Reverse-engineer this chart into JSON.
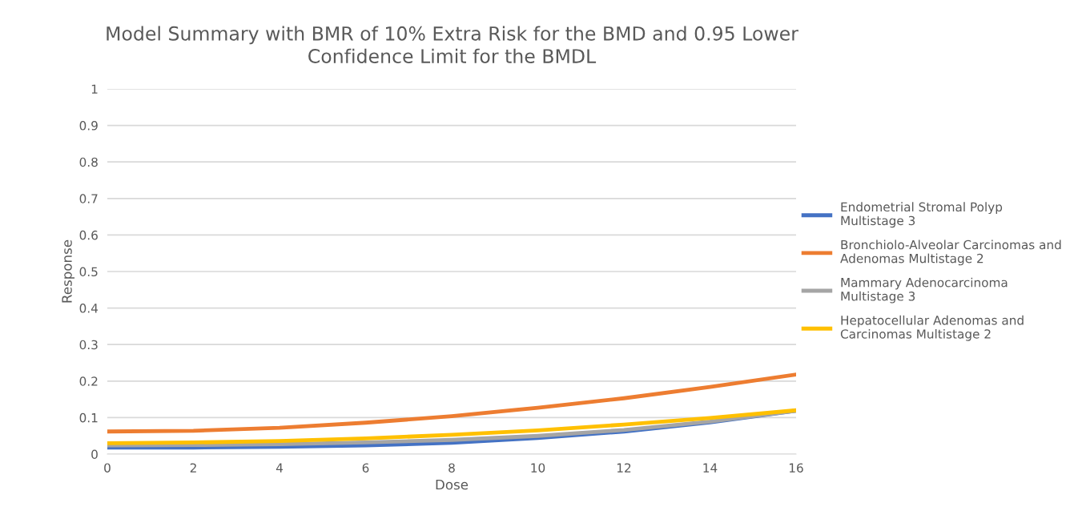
{
  "chart_data": {
    "type": "line",
    "title": "Model Summary with BMR of 10% Extra Risk for the BMD and 0.95 Lower\nConfidence Limit for the BMDL",
    "xlabel": "Dose",
    "ylabel": "Response",
    "x": [
      0,
      2,
      4,
      6,
      8,
      10,
      12,
      14,
      16
    ],
    "series": [
      {
        "name": "Endometrial Stromal Polyp\nMultistage 3",
        "color": "#4472c4",
        "values": [
          0.018,
          0.018,
          0.02,
          0.024,
          0.031,
          0.044,
          0.062,
          0.087,
          0.119
        ]
      },
      {
        "name": "Bronchiolo-Alveolar Carcinomas and\nAdenomas Multistage 2",
        "color": "#ed7d31",
        "values": [
          0.062,
          0.064,
          0.072,
          0.086,
          0.104,
          0.127,
          0.153,
          0.184,
          0.218
        ]
      },
      {
        "name": "Mammary Adenocarcinoma\nMultistage 3",
        "color": "#a5a5a5",
        "values": [
          0.024,
          0.025,
          0.027,
          0.032,
          0.039,
          0.05,
          0.066,
          0.089,
          0.119
        ]
      },
      {
        "name": "Hepatocellular Adenomas and\nCarcinomas Multistage 2",
        "color": "#ffc000",
        "values": [
          0.03,
          0.032,
          0.036,
          0.043,
          0.053,
          0.065,
          0.081,
          0.099,
          0.12
        ]
      }
    ],
    "xlim": [
      0,
      16
    ],
    "xticks": [
      0,
      2,
      4,
      6,
      8,
      10,
      12,
      14,
      16
    ],
    "ylim": [
      0,
      1
    ],
    "yticks": [
      0,
      0.1,
      0.2,
      0.3,
      0.4,
      0.5,
      0.6,
      0.7,
      0.8,
      0.9,
      1
    ],
    "grid": "y",
    "legend": "right",
    "marker": "none",
    "line_style": "solid"
  }
}
